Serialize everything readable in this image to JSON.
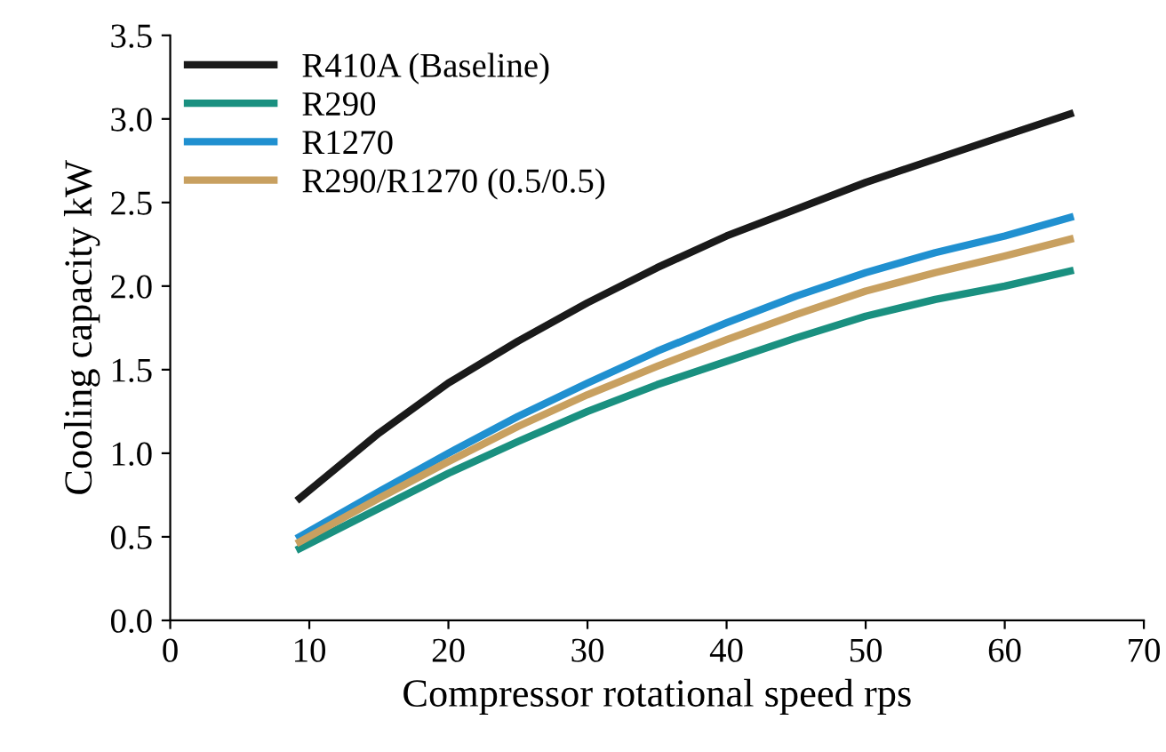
{
  "chart_data": {
    "type": "line",
    "xlabel": "Compressor rotational speed rps",
    "ylabel": "Cooling capacity kW",
    "xlim": [
      0,
      70
    ],
    "xticks": [
      0,
      10,
      20,
      30,
      40,
      50,
      60,
      70
    ],
    "ylim": [
      0,
      3.5
    ],
    "yticks": [
      {
        "value": 0,
        "label": "0.0"
      },
      {
        "value": 0.5,
        "label": "0.5"
      },
      {
        "value": 1,
        "label": "1.0"
      },
      {
        "value": 1.5,
        "label": "1.5"
      },
      {
        "value": 2,
        "label": "2.0"
      },
      {
        "value": 2.5,
        "label": "2.5"
      },
      {
        "value": 3,
        "label": "3.0"
      },
      {
        "value": 3.5,
        "label": "3.5"
      }
    ],
    "grid": false,
    "legend": "top left",
    "marker": "none",
    "line_style": "solid",
    "x": [
      9.3,
      15,
      20,
      25,
      30,
      35,
      40,
      45,
      50,
      55,
      60,
      64.7
    ],
    "series": [
      {
        "name": "R410A (Baseline)",
        "color": "#1a1a1a",
        "values": [
          0.73,
          1.12,
          1.42,
          1.67,
          1.9,
          2.11,
          2.3,
          2.46,
          2.62,
          2.76,
          2.9,
          3.03
        ]
      },
      {
        "name": "R290",
        "color": "#1a9080",
        "values": [
          0.43,
          0.67,
          0.88,
          1.07,
          1.25,
          1.41,
          1.55,
          1.69,
          1.82,
          1.92,
          2.0,
          2.09
        ]
      },
      {
        "name": "R1270",
        "color": "#2090d0",
        "values": [
          0.5,
          0.77,
          1.0,
          1.22,
          1.42,
          1.61,
          1.78,
          1.94,
          2.08,
          2.2,
          2.3,
          2.41
        ]
      },
      {
        "name": "R290/R1270 (0.5/0.5)",
        "color": "#c8a060",
        "values": [
          0.47,
          0.73,
          0.95,
          1.16,
          1.35,
          1.52,
          1.68,
          1.83,
          1.97,
          2.08,
          2.18,
          2.28
        ]
      }
    ]
  }
}
